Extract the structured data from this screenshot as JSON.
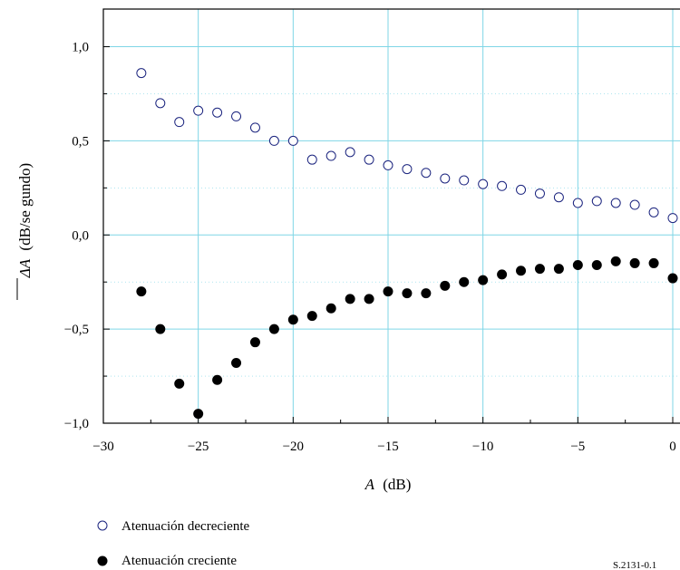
{
  "chart_data": {
    "type": "scatter",
    "xlabel_var": "A",
    "xlabel_unit": "(dB)",
    "ylabel_var": "ΔA",
    "ylabel_unit": "(dB/se gundo)",
    "xlim": [
      -30,
      0
    ],
    "ylim": [
      -1.0,
      1.2
    ],
    "x_ticks": [
      -30,
      -25,
      -20,
      -15,
      -10,
      -5,
      0
    ],
    "x_tick_labels": [
      "−30",
      "−25",
      "−20",
      "−15",
      "−10",
      "−5",
      "0"
    ],
    "y_ticks": [
      -1.0,
      -0.5,
      0.0,
      0.5,
      1.0
    ],
    "y_tick_labels": [
      "−1,0",
      "−0,5",
      "0,0",
      "0,5",
      "1,0"
    ],
    "grid": true,
    "grid_color": "#7fd6e6",
    "legend_position": "bottom-left",
    "series": [
      {
        "name": "Atenuación decreciente",
        "marker": "open-circle",
        "color": "#1a237e",
        "points": [
          [
            -28,
            0.86
          ],
          [
            -27,
            0.7
          ],
          [
            -26,
            0.6
          ],
          [
            -25,
            0.66
          ],
          [
            -24,
            0.65
          ],
          [
            -23,
            0.63
          ],
          [
            -22,
            0.57
          ],
          [
            -21,
            0.5
          ],
          [
            -20,
            0.5
          ],
          [
            -19,
            0.4
          ],
          [
            -18,
            0.42
          ],
          [
            -17,
            0.44
          ],
          [
            -16,
            0.4
          ],
          [
            -15,
            0.37
          ],
          [
            -14,
            0.35
          ],
          [
            -13,
            0.33
          ],
          [
            -12,
            0.3
          ],
          [
            -11,
            0.29
          ],
          [
            -10,
            0.27
          ],
          [
            -9,
            0.26
          ],
          [
            -8,
            0.24
          ],
          [
            -7,
            0.22
          ],
          [
            -6,
            0.2
          ],
          [
            -5,
            0.17
          ],
          [
            -4,
            0.18
          ],
          [
            -3,
            0.17
          ],
          [
            -2,
            0.16
          ],
          [
            -1,
            0.12
          ],
          [
            0,
            0.09
          ]
        ]
      },
      {
        "name": "Atenuación creciente",
        "marker": "filled-circle",
        "color": "#000000",
        "points": [
          [
            -28,
            -0.3
          ],
          [
            -27,
            -0.5
          ],
          [
            -26,
            -0.79
          ],
          [
            -25,
            -0.95
          ],
          [
            -24,
            -0.77
          ],
          [
            -23,
            -0.68
          ],
          [
            -22,
            -0.57
          ],
          [
            -21,
            -0.5
          ],
          [
            -20,
            -0.45
          ],
          [
            -19,
            -0.43
          ],
          [
            -18,
            -0.39
          ],
          [
            -17,
            -0.34
          ],
          [
            -16,
            -0.34
          ],
          [
            -15,
            -0.3
          ],
          [
            -14,
            -0.31
          ],
          [
            -13,
            -0.31
          ],
          [
            -12,
            -0.27
          ],
          [
            -11,
            -0.25
          ],
          [
            -10,
            -0.24
          ],
          [
            -9,
            -0.21
          ],
          [
            -8,
            -0.19
          ],
          [
            -7,
            -0.18
          ],
          [
            -6,
            -0.18
          ],
          [
            -5,
            -0.16
          ],
          [
            -4,
            -0.16
          ],
          [
            -3,
            -0.14
          ],
          [
            -2,
            -0.15
          ],
          [
            -1,
            -0.15
          ],
          [
            0,
            -0.23
          ]
        ]
      }
    ]
  },
  "figure_ref": "S.2131-0.1"
}
